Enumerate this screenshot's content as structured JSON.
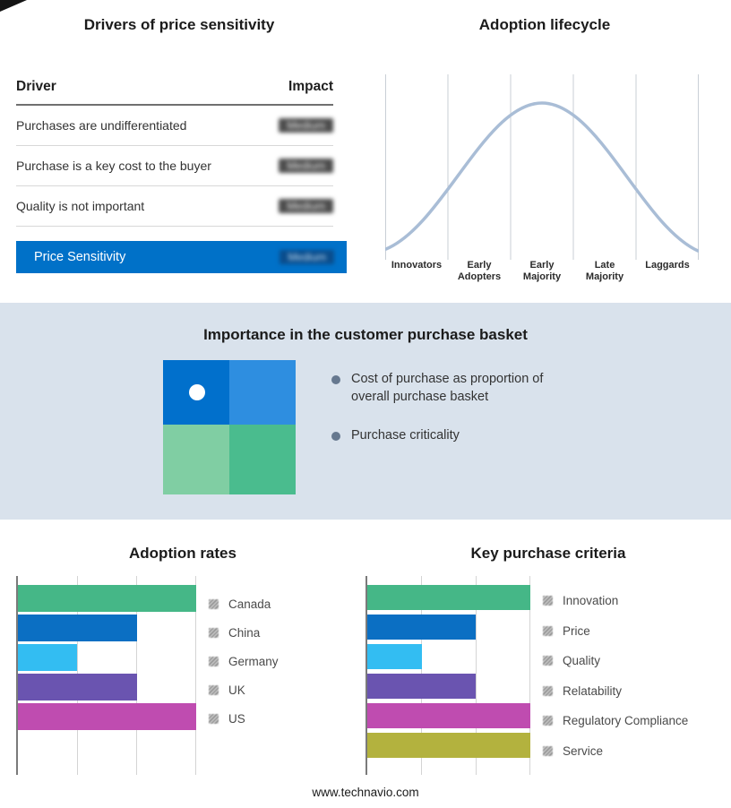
{
  "page": {
    "footer": "www.technavio.com"
  },
  "drivers_table": {
    "title": "Drivers of price sensitivity",
    "header": {
      "driver": "Driver",
      "impact": "Impact"
    },
    "rows": [
      {
        "driver": "Purchases are undifferentiated",
        "impact": "Medium"
      },
      {
        "driver": "Purchase is a key cost to the buyer",
        "impact": "Medium"
      },
      {
        "driver": "Quality is not important",
        "impact": "Medium"
      }
    ],
    "summary": {
      "label": "Price Sensitivity",
      "impact": "Medium"
    },
    "accent_color": "#0071c8"
  },
  "adoption_lifecycle": {
    "title": "Adoption lifecycle",
    "stages": [
      "Innovators",
      "Early\nAdopters",
      "Early\nMajority",
      "Late\nMajority",
      "Laggards"
    ],
    "curve_color": "#a9bdd6"
  },
  "purchase_basket": {
    "title": "Importance in the customer purchase basket",
    "bullets": [
      "Cost of purchase as proportion of overall purchase basket",
      "Purchase criticality"
    ],
    "quadrant_colors": [
      "#0170cc",
      "#2e8ee0",
      "#80cea3",
      "#4abc8e"
    ],
    "background": "#d9e2ec"
  },
  "adoption_rates": {
    "title": "Adoption rates",
    "xmax": 3,
    "series": [
      {
        "label": "Canada",
        "value": 3,
        "color": "#45b787"
      },
      {
        "label": "China",
        "value": 2,
        "color": "#0b6fc3"
      },
      {
        "label": "Germany",
        "value": 1,
        "color": "#33bdf2"
      },
      {
        "label": "UK",
        "value": 2,
        "color": "#6a54b0"
      },
      {
        "label": "US",
        "value": 3,
        "color": "#bf4cb0"
      }
    ]
  },
  "key_purchase_criteria": {
    "title": "Key purchase criteria",
    "xmax": 3,
    "series": [
      {
        "label": "Innovation",
        "value": 3,
        "color": "#45b787"
      },
      {
        "label": "Price",
        "value": 2,
        "color": "#0b6fc3"
      },
      {
        "label": "Quality",
        "value": 1,
        "color": "#33bdf2"
      },
      {
        "label": "Relatability",
        "value": 2,
        "color": "#6a54b0"
      },
      {
        "label": "Regulatory Compliance",
        "value": 3,
        "color": "#bf4cb0"
      },
      {
        "label": "Service",
        "value": 3,
        "color": "#b3b23e"
      }
    ]
  },
  "chart_data": [
    {
      "type": "line",
      "title": "Adoption lifecycle",
      "categories": [
        "Innovators",
        "Early Adopters",
        "Early Majority",
        "Late Majority",
        "Laggards"
      ],
      "values": [
        0.1,
        0.55,
        1.0,
        0.55,
        0.1
      ],
      "xlabel": "",
      "ylabel": "",
      "grid": true,
      "note": "bell-shaped adoption curve peaking at Early Majority"
    },
    {
      "type": "bar",
      "orientation": "horizontal",
      "title": "Adoption rates",
      "categories": [
        "Canada",
        "China",
        "Germany",
        "UK",
        "US"
      ],
      "values": [
        3,
        2,
        1,
        2,
        3
      ],
      "xlim": [
        0,
        3
      ],
      "grid": true,
      "legend_position": "right"
    },
    {
      "type": "bar",
      "orientation": "horizontal",
      "title": "Key purchase criteria",
      "categories": [
        "Innovation",
        "Price",
        "Quality",
        "Relatability",
        "Regulatory Compliance",
        "Service"
      ],
      "values": [
        3,
        2,
        1,
        2,
        3,
        3
      ],
      "xlim": [
        0,
        3
      ],
      "grid": true,
      "legend_position": "right"
    }
  ]
}
